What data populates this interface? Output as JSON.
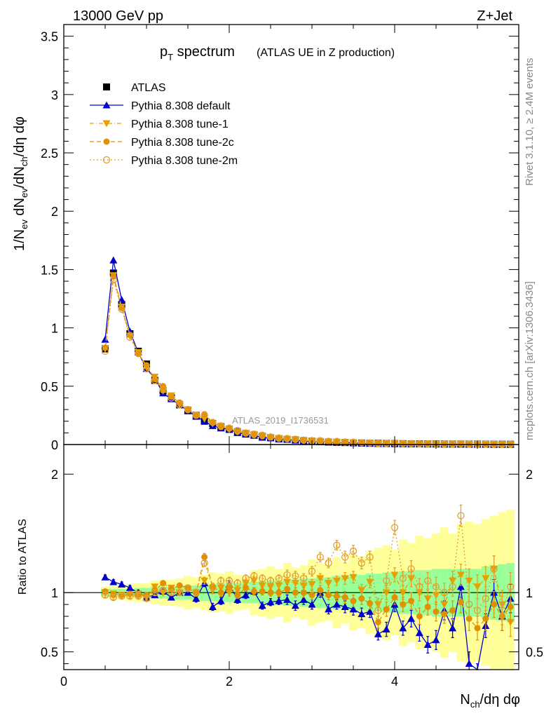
{
  "header": {
    "left": "13000 GeV pp",
    "right": "Z+Jet"
  },
  "plot_title": {
    "main": "p",
    "sub": "T",
    "rest": " spectrum",
    "note": "(ATLAS UE in Z production)"
  },
  "side_labels": {
    "rivet": "Rivet 3.1.10, ≥ 2.4M events",
    "mcplots": "mcplots.cern.ch [arXiv:1306.3436]"
  },
  "analysis_tag": "ATLAS_2019_I1736531",
  "legend": [
    {
      "label": "ATLAS",
      "color": "#000000",
      "marker": "square",
      "line": "none"
    },
    {
      "label": "Pythia 8.308 default",
      "color": "#0000cc",
      "marker": "triangle-up",
      "line": "solid"
    },
    {
      "label": "Pythia 8.308 tune-1",
      "color": "#e8a000",
      "marker": "triangle-down",
      "line": "dashdot"
    },
    {
      "label": "Pythia 8.308 tune-2c",
      "color": "#e09000",
      "marker": "circle",
      "line": "dashed"
    },
    {
      "label": "Pythia 8.308 tune-2m",
      "color": "#e0a030",
      "marker": "open-circle",
      "line": "dotted"
    }
  ],
  "chart_data": {
    "type": "line",
    "xlabel": "N_ch/dη dφ",
    "ylabel": "1/N_ev dN_ev/dN_ch/dη dφ",
    "ratio_ylabel": "Ratio to ATLAS",
    "xlim": [
      0,
      5.5
    ],
    "ylim": [
      0,
      3.6
    ],
    "ratio_ylim": [
      0.35,
      2.25
    ],
    "x_ticks": [
      "0",
      "2",
      "4"
    ],
    "y_ticks": [
      "0",
      "0.5",
      "1",
      "1.5",
      "2",
      "2.5",
      "3",
      "3.5"
    ],
    "ratio_y_ticks": [
      "0.5",
      "1",
      "2"
    ],
    "x": [
      0.5,
      0.6,
      0.7,
      0.8,
      0.9,
      1.0,
      1.1,
      1.2,
      1.3,
      1.4,
      1.5,
      1.6,
      1.7,
      1.8,
      1.9,
      2.0,
      2.1,
      2.2,
      2.3,
      2.4,
      2.5,
      2.6,
      2.7,
      2.8,
      2.9,
      3.0,
      3.1,
      3.2,
      3.3,
      3.4,
      3.5,
      3.6,
      3.7,
      3.8,
      3.9,
      4.0,
      4.1,
      4.2,
      4.3,
      4.4,
      4.5,
      4.6,
      4.7,
      4.8,
      4.9,
      5.0,
      5.1,
      5.2,
      5.3,
      5.4
    ],
    "series": [
      {
        "name": "ATLAS",
        "values": [
          0.82,
          1.47,
          1.2,
          0.95,
          0.8,
          0.69,
          0.55,
          0.46,
          0.4,
          0.34,
          0.29,
          0.25,
          0.2,
          0.18,
          0.15,
          0.13,
          0.11,
          0.09,
          0.08,
          0.07,
          0.06,
          0.05,
          0.045,
          0.04,
          0.034,
          0.029,
          0.025,
          0.022,
          0.019,
          0.017,
          0.015,
          0.013,
          0.011,
          0.01,
          0.009,
          0.008,
          0.007,
          0.006,
          0.006,
          0.005,
          0.005,
          0.004,
          0.004,
          0.004,
          0.003,
          0.003,
          0.003,
          0.002,
          0.002,
          0.002
        ],
        "ratio": [
          1,
          1,
          1,
          1,
          1,
          1,
          1,
          1,
          1,
          1,
          1,
          1,
          1,
          1,
          1,
          1,
          1,
          1,
          1,
          1,
          1,
          1,
          1,
          1,
          1,
          1,
          1,
          1,
          1,
          1,
          1,
          1,
          1,
          1,
          1,
          1,
          1,
          1,
          1,
          1,
          1,
          1,
          1,
          1,
          1,
          1,
          1,
          1,
          1,
          1
        ],
        "band_stat": [
          0.03,
          0.03,
          0.03,
          0.03,
          0.04,
          0.04,
          0.05,
          0.05,
          0.05,
          0.06,
          0.06,
          0.06,
          0.07,
          0.07,
          0.08,
          0.08,
          0.08,
          0.09,
          0.09,
          0.1,
          0.1,
          0.1,
          0.11,
          0.11,
          0.12,
          0.12,
          0.13,
          0.13,
          0.14,
          0.14,
          0.15,
          0.15,
          0.16,
          0.16,
          0.17,
          0.17,
          0.18,
          0.18,
          0.19,
          0.19,
          0.2,
          0.2,
          0.2,
          0.2,
          0.2,
          0.2,
          0.22,
          0.23,
          0.24,
          0.25
        ],
        "band_total": [
          0.05,
          0.06,
          0.06,
          0.07,
          0.08,
          0.08,
          0.1,
          0.11,
          0.11,
          0.12,
          0.14,
          0.13,
          0.15,
          0.17,
          0.16,
          0.18,
          0.15,
          0.14,
          0.19,
          0.2,
          0.22,
          0.2,
          0.25,
          0.21,
          0.23,
          0.28,
          0.25,
          0.24,
          0.3,
          0.26,
          0.32,
          0.3,
          0.35,
          0.38,
          0.4,
          0.36,
          0.45,
          0.42,
          0.48,
          0.46,
          0.5,
          0.55,
          0.5,
          0.58,
          0.6,
          0.58,
          0.62,
          0.65,
          0.68,
          0.7
        ]
      },
      {
        "name": "Pythia 8.308 default",
        "values": [
          0.9,
          1.58,
          1.24,
          0.97,
          0.79,
          0.65,
          0.57,
          0.44,
          0.39,
          0.34,
          0.29,
          0.24,
          0.2,
          0.16,
          0.14,
          0.13,
          0.1,
          0.09,
          0.08,
          0.06,
          0.055,
          0.046,
          0.042,
          0.035,
          0.03,
          0.026,
          0.025,
          0.019,
          0.017,
          0.015,
          0.013,
          0.011,
          0.009,
          0.0065,
          0.0062,
          0.0072,
          0.0049,
          0.0047,
          0.004,
          0.0028,
          0.003,
          0.0034,
          0.0028,
          0.0042,
          0.0012,
          0.0009,
          0.0022,
          0.0016,
          0.0016,
          0.0019
        ],
        "ratio": [
          1.13,
          1.09,
          1.07,
          1.04,
          1.0,
          0.96,
          0.98,
          1.01,
          0.96,
          1.0,
          1.0,
          0.95,
          1.08,
          0.88,
          0.93,
          1.07,
          0.94,
          0.98,
          1.01,
          0.89,
          0.92,
          0.93,
          0.94,
          0.89,
          0.94,
          0.9,
          1.0,
          0.86,
          0.9,
          0.88,
          0.86,
          0.82,
          0.84,
          0.65,
          0.69,
          0.9,
          0.7,
          0.78,
          0.66,
          0.56,
          0.6,
          0.85,
          0.7,
          1.05,
          0.4,
          0.3,
          0.72,
          1.0,
          0.8,
          0.95
        ],
        "err": [
          0.02,
          0.02,
          0.02,
          0.02,
          0.02,
          0.02,
          0.02,
          0.02,
          0.02,
          0.02,
          0.02,
          0.03,
          0.03,
          0.03,
          0.03,
          0.03,
          0.03,
          0.03,
          0.03,
          0.03,
          0.03,
          0.03,
          0.04,
          0.04,
          0.04,
          0.04,
          0.04,
          0.04,
          0.04,
          0.05,
          0.05,
          0.05,
          0.05,
          0.05,
          0.06,
          0.06,
          0.06,
          0.07,
          0.07,
          0.07,
          0.08,
          0.08,
          0.08,
          0.09,
          0.1,
          0.1,
          0.1,
          0.11,
          0.12,
          0.12
        ]
      },
      {
        "name": "Pythia 8.308 tune-1",
        "values": [
          0.82,
          1.45,
          1.18,
          0.93,
          0.79,
          0.66,
          0.58,
          0.46,
          0.42,
          0.34,
          0.3,
          0.25,
          0.22,
          0.18,
          0.16,
          0.13,
          0.11,
          0.1,
          0.088,
          0.074,
          0.063,
          0.053,
          0.049,
          0.043,
          0.036,
          0.031,
          0.028,
          0.024,
          0.021,
          0.019,
          0.017,
          0.013,
          0.012,
          0.009,
          0.009,
          0.009,
          0.007,
          0.007,
          0.006,
          0.005,
          0.005,
          0.0036,
          0.0044,
          0.0046,
          0.0033,
          0.0032,
          0.0034,
          0.0024,
          0.0018,
          0.0015
        ],
        "ratio": [
          1.0,
          0.99,
          0.98,
          0.98,
          0.99,
          0.96,
          1.05,
          1.0,
          1.04,
          1.0,
          1.03,
          1.0,
          1.1,
          1.02,
          1.04,
          1.0,
          1.02,
          1.08,
          1.1,
          1.06,
          1.05,
          1.06,
          1.09,
          1.08,
          1.06,
          1.07,
          1.12,
          1.08,
          1.1,
          1.12,
          1.13,
          1.02,
          1.09,
          0.9,
          1.0,
          1.15,
          1.0,
          1.12,
          1.0,
          0.95,
          0.98,
          0.9,
          1.1,
          1.15,
          1.1,
          1.05,
          1.12,
          1.2,
          0.9,
          0.75
        ],
        "err": [
          0.02,
          0.02,
          0.02,
          0.02,
          0.02,
          0.02,
          0.02,
          0.02,
          0.02,
          0.02,
          0.02,
          0.03,
          0.03,
          0.03,
          0.03,
          0.03,
          0.03,
          0.03,
          0.03,
          0.03,
          0.03,
          0.03,
          0.04,
          0.04,
          0.04,
          0.04,
          0.04,
          0.04,
          0.04,
          0.05,
          0.05,
          0.05,
          0.05,
          0.05,
          0.06,
          0.06,
          0.06,
          0.07,
          0.07,
          0.07,
          0.08,
          0.08,
          0.08,
          0.09,
          0.1,
          0.1,
          0.1,
          0.11,
          0.12,
          0.12
        ]
      },
      {
        "name": "Pythia 8.308 tune-2c",
        "values": [
          0.83,
          1.44,
          1.17,
          0.94,
          0.78,
          0.68,
          0.56,
          0.5,
          0.41,
          0.36,
          0.3,
          0.25,
          0.26,
          0.19,
          0.15,
          0.14,
          0.11,
          0.094,
          0.081,
          0.071,
          0.06,
          0.05,
          0.046,
          0.04,
          0.034,
          0.028,
          0.025,
          0.021,
          0.018,
          0.016,
          0.014,
          0.012,
          0.01,
          0.0075,
          0.0078,
          0.0077,
          0.0063,
          0.0056,
          0.0048,
          0.0044,
          0.0042,
          0.0033,
          0.0034,
          0.0037,
          0.0023,
          0.0021,
          0.0023,
          0.0018,
          0.0016,
          0.0018
        ],
        "ratio": [
          1.01,
          0.98,
          0.98,
          0.99,
          0.98,
          0.98,
          1.02,
          1.08,
          1.03,
          1.06,
          1.04,
          1.0,
          1.3,
          1.05,
          1.0,
          1.05,
          0.98,
          1.04,
          1.01,
          1.01,
          1.0,
          1.0,
          1.03,
          1.0,
          1.0,
          0.98,
          1.02,
          0.98,
          0.97,
          0.96,
          0.93,
          0.95,
          0.91,
          0.75,
          0.86,
          0.96,
          0.9,
          0.93,
          0.8,
          0.88,
          0.84,
          0.82,
          0.85,
          0.92,
          0.78,
          0.7,
          0.78,
          0.9,
          0.8,
          0.88
        ],
        "err": [
          0.02,
          0.02,
          0.02,
          0.02,
          0.02,
          0.02,
          0.02,
          0.02,
          0.02,
          0.02,
          0.02,
          0.03,
          0.03,
          0.03,
          0.03,
          0.03,
          0.03,
          0.03,
          0.03,
          0.03,
          0.03,
          0.03,
          0.04,
          0.04,
          0.04,
          0.04,
          0.04,
          0.04,
          0.04,
          0.05,
          0.05,
          0.05,
          0.05,
          0.05,
          0.06,
          0.06,
          0.06,
          0.07,
          0.07,
          0.07,
          0.08,
          0.08,
          0.08,
          0.09,
          0.1,
          0.1,
          0.1,
          0.11,
          0.12,
          0.12
        ]
      },
      {
        "name": "Pythia 8.308 tune-2m",
        "values": [
          0.8,
          1.41,
          1.16,
          0.92,
          0.78,
          0.65,
          0.55,
          0.47,
          0.4,
          0.34,
          0.3,
          0.25,
          0.25,
          0.19,
          0.16,
          0.14,
          0.12,
          0.1,
          0.09,
          0.08,
          0.065,
          0.056,
          0.052,
          0.046,
          0.038,
          0.034,
          0.033,
          0.028,
          0.027,
          0.022,
          0.02,
          0.016,
          0.014,
          0.008,
          0.01,
          0.0125,
          0.0079,
          0.007,
          0.0062,
          0.0055,
          0.0052,
          0.0041,
          0.0042,
          0.0066,
          0.0027,
          0.0025,
          0.0028,
          0.0024,
          0.0017,
          0.0021
        ],
        "ratio": [
          0.98,
          0.96,
          0.97,
          0.97,
          0.97,
          0.95,
          1.0,
          1.02,
          1.0,
          1.0,
          1.04,
          1.0,
          1.25,
          1.05,
          1.1,
          1.1,
          1.08,
          1.12,
          1.14,
          1.12,
          1.1,
          1.12,
          1.15,
          1.14,
          1.12,
          1.18,
          1.3,
          1.25,
          1.4,
          1.3,
          1.35,
          1.25,
          1.3,
          0.85,
          1.1,
          1.55,
          1.12,
          1.2,
          1.05,
          1.1,
          1.05,
          1.0,
          1.05,
          1.65,
          0.9,
          0.85,
          0.95,
          1.2,
          0.85,
          1.05
        ],
        "err": [
          0.02,
          0.02,
          0.02,
          0.02,
          0.02,
          0.02,
          0.02,
          0.02,
          0.02,
          0.02,
          0.02,
          0.03,
          0.03,
          0.03,
          0.03,
          0.03,
          0.03,
          0.03,
          0.03,
          0.03,
          0.03,
          0.03,
          0.04,
          0.04,
          0.04,
          0.04,
          0.04,
          0.04,
          0.04,
          0.05,
          0.05,
          0.05,
          0.05,
          0.05,
          0.06,
          0.06,
          0.06,
          0.07,
          0.07,
          0.07,
          0.08,
          0.08,
          0.08,
          0.09,
          0.1,
          0.1,
          0.1,
          0.11,
          0.12,
          0.12
        ]
      }
    ]
  }
}
